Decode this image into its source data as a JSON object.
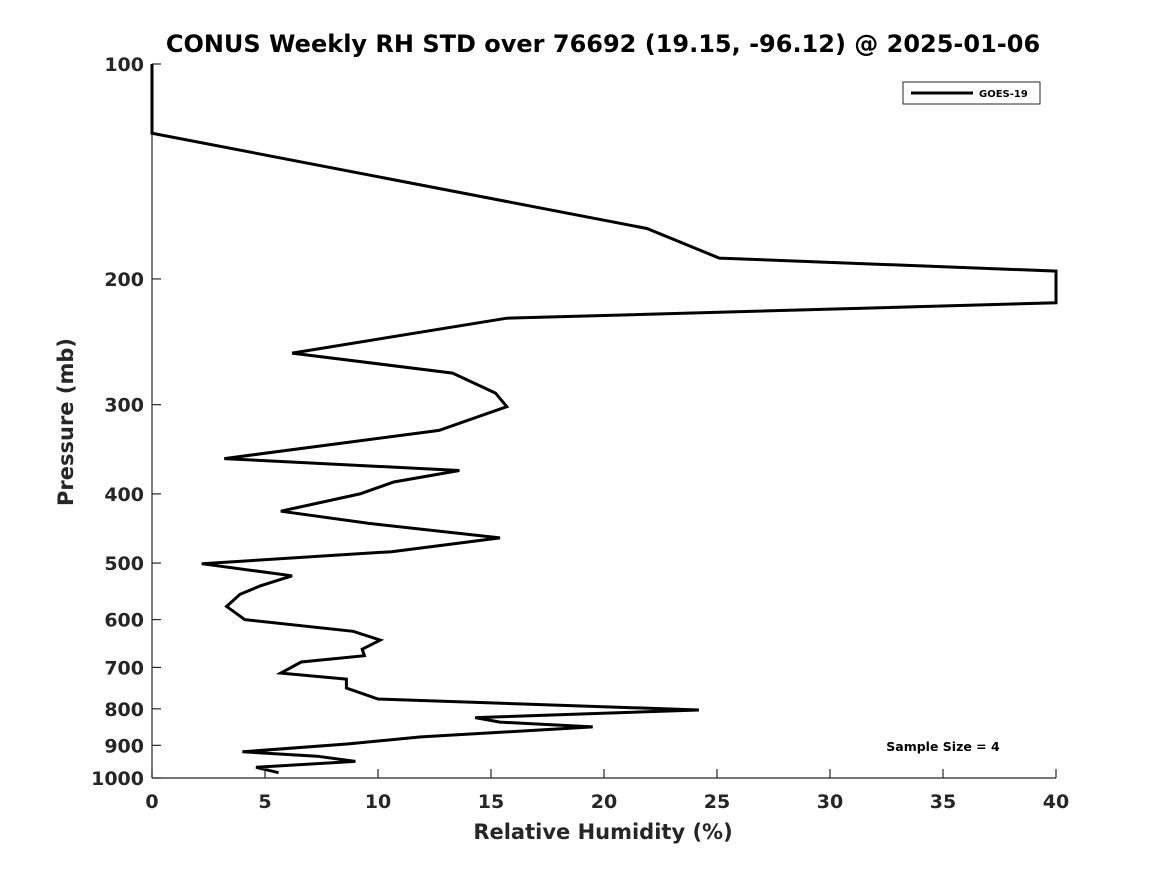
{
  "chart_data": {
    "type": "line",
    "title": "CONUS Weekly RH STD over 76692 (19.15, -96.12) @ 2025-01-06",
    "xlabel": "Relative Humidity (%)",
    "ylabel": "Pressure (mb)",
    "xlim": [
      0,
      40
    ],
    "ylim": [
      100,
      1000
    ],
    "y_scale": "log",
    "y_reversed": true,
    "xticks": [
      "0",
      "5",
      "10",
      "15",
      "20",
      "25",
      "30",
      "35",
      "40"
    ],
    "yticks": [
      "100",
      "200",
      "300",
      "400",
      "500",
      "600",
      "700",
      "800",
      "900",
      "1000"
    ],
    "grid": false,
    "legend": {
      "position": "top-right"
    },
    "series": [
      {
        "name": "GOES-19",
        "color": "#000000",
        "points": [
          [
            0,
            100
          ],
          [
            0,
            125
          ],
          [
            21.9,
            170
          ],
          [
            25.1,
            187
          ],
          [
            40,
            195
          ],
          [
            40,
            216
          ],
          [
            15.7,
            227
          ],
          [
            6.2,
            254
          ],
          [
            13.3,
            271
          ],
          [
            15.2,
            289
          ],
          [
            15.7,
            302
          ],
          [
            12.7,
            326
          ],
          [
            3.2,
            357
          ],
          [
            13.6,
            371
          ],
          [
            10.7,
            385
          ],
          [
            9.2,
            400
          ],
          [
            5.7,
            423
          ],
          [
            9.6,
            440
          ],
          [
            15.4,
            461
          ],
          [
            10.6,
            482
          ],
          [
            2.2,
            501
          ],
          [
            6.2,
            521
          ],
          [
            4.8,
            538
          ],
          [
            3.9,
            553
          ],
          [
            3.3,
            575
          ],
          [
            4.1,
            600
          ],
          [
            8.9,
            623
          ],
          [
            10.1,
            641
          ],
          [
            9.3,
            660
          ],
          [
            9.4,
            674
          ],
          [
            6.6,
            688
          ],
          [
            5.7,
            713
          ],
          [
            8.6,
            727
          ],
          [
            8.6,
            748
          ],
          [
            10.0,
            775
          ],
          [
            24.2,
            803
          ],
          [
            14.3,
            823
          ],
          [
            15.4,
            835
          ],
          [
            19.5,
            848
          ],
          [
            11.9,
            876
          ],
          [
            8.7,
            896
          ],
          [
            4.0,
            919
          ],
          [
            7.3,
            932
          ],
          [
            9.0,
            948
          ],
          [
            4.6,
            966
          ],
          [
            5.6,
            983
          ]
        ]
      }
    ],
    "annotations": [
      "Sample Size = 4"
    ]
  }
}
